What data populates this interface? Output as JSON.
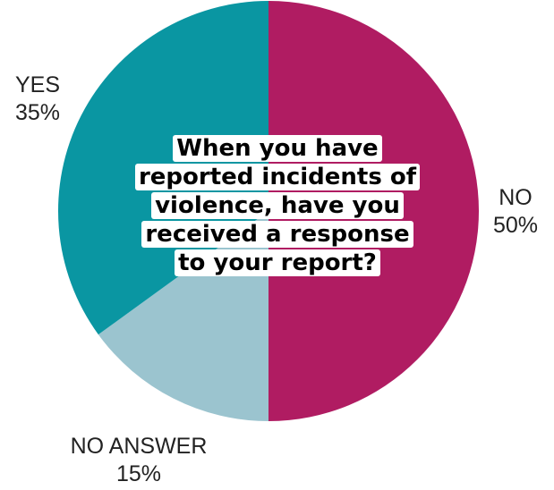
{
  "chart_data": {
    "type": "pie",
    "title": "When you have reported incidents of violence, have you received a response to your report?",
    "slices": [
      {
        "label": "NO",
        "value": 50,
        "value_label": "50%",
        "color": "#b01c62"
      },
      {
        "label": "NO ANSWER",
        "value": 15,
        "value_label": "15%",
        "color": "#9bc4cf"
      },
      {
        "label": "YES",
        "value": 35,
        "value_label": "35%",
        "color": "#0a96a2"
      }
    ],
    "start_angle_deg": 0,
    "direction": "clockwise"
  }
}
